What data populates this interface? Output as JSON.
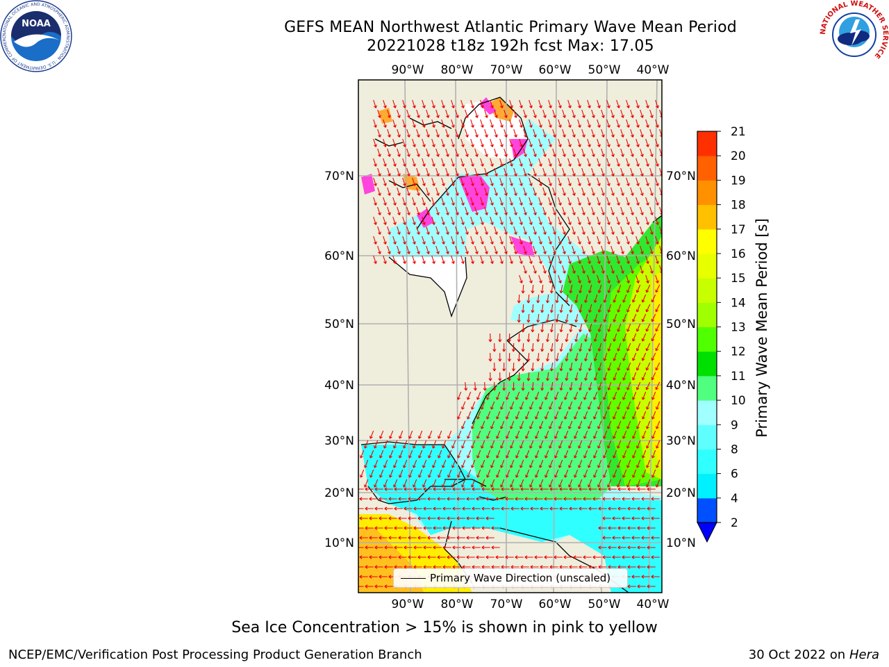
{
  "title": {
    "line1": "GEFS MEAN Northwest Atlantic Primary Wave Mean Period",
    "line2": "20221028 t18z 192h fcst   Max: 17.05"
  },
  "map": {
    "lon_ticks": [
      "90°W",
      "80°W",
      "70°W",
      "60°W",
      "50°W",
      "40°W"
    ],
    "lat_ticks": [
      "70°N",
      "60°N",
      "50°N",
      "40°N",
      "30°N",
      "20°N",
      "10°N"
    ],
    "colors": {
      "land": "#efeddc",
      "coast": "#000000",
      "grid": "#b0b0b0",
      "arrow": "#ee0000",
      "ice_pink": "#ff44dd",
      "ice_orange": "#ffaa33"
    }
  },
  "legend": {
    "label": "Primary Wave Direction (unscaled)"
  },
  "colorbar": {
    "title": "Primary Wave Mean Period [s]",
    "ticks": [
      "2",
      "4",
      "6",
      "8",
      "9",
      "10",
      "11",
      "12",
      "13",
      "14",
      "15",
      "16",
      "17",
      "18",
      "19",
      "20",
      "21"
    ],
    "colors": [
      "#0050ff",
      "#00f0ff",
      "#30ffff",
      "#60ffff",
      "#a0ffff",
      "#50ff80",
      "#00e000",
      "#50ff00",
      "#a0ff00",
      "#c8ff00",
      "#e8ff00",
      "#ffff00",
      "#ffc000",
      "#ff9000",
      "#ff6000",
      "#ff3000",
      "#ff0000"
    ],
    "under_color": "#0000ff"
  },
  "footnote": "Sea Ice Concentration > 15% is shown in pink to yellow",
  "credit": "NCEP/EMC/Verification Post Processing Product Generation Branch",
  "datestamp": {
    "date": "30 Oct 2022 on",
    "machine": "Hera"
  },
  "logos": {
    "noaa_text": "NOAA",
    "noaa_ring": "NATIONAL OCEANIC AND ATMOSPHERIC ADMINISTRATION · U.S. DEPARTMENT OF COMMERCE",
    "nws_ring": "NATIONAL WEATHER SERVICE"
  }
}
